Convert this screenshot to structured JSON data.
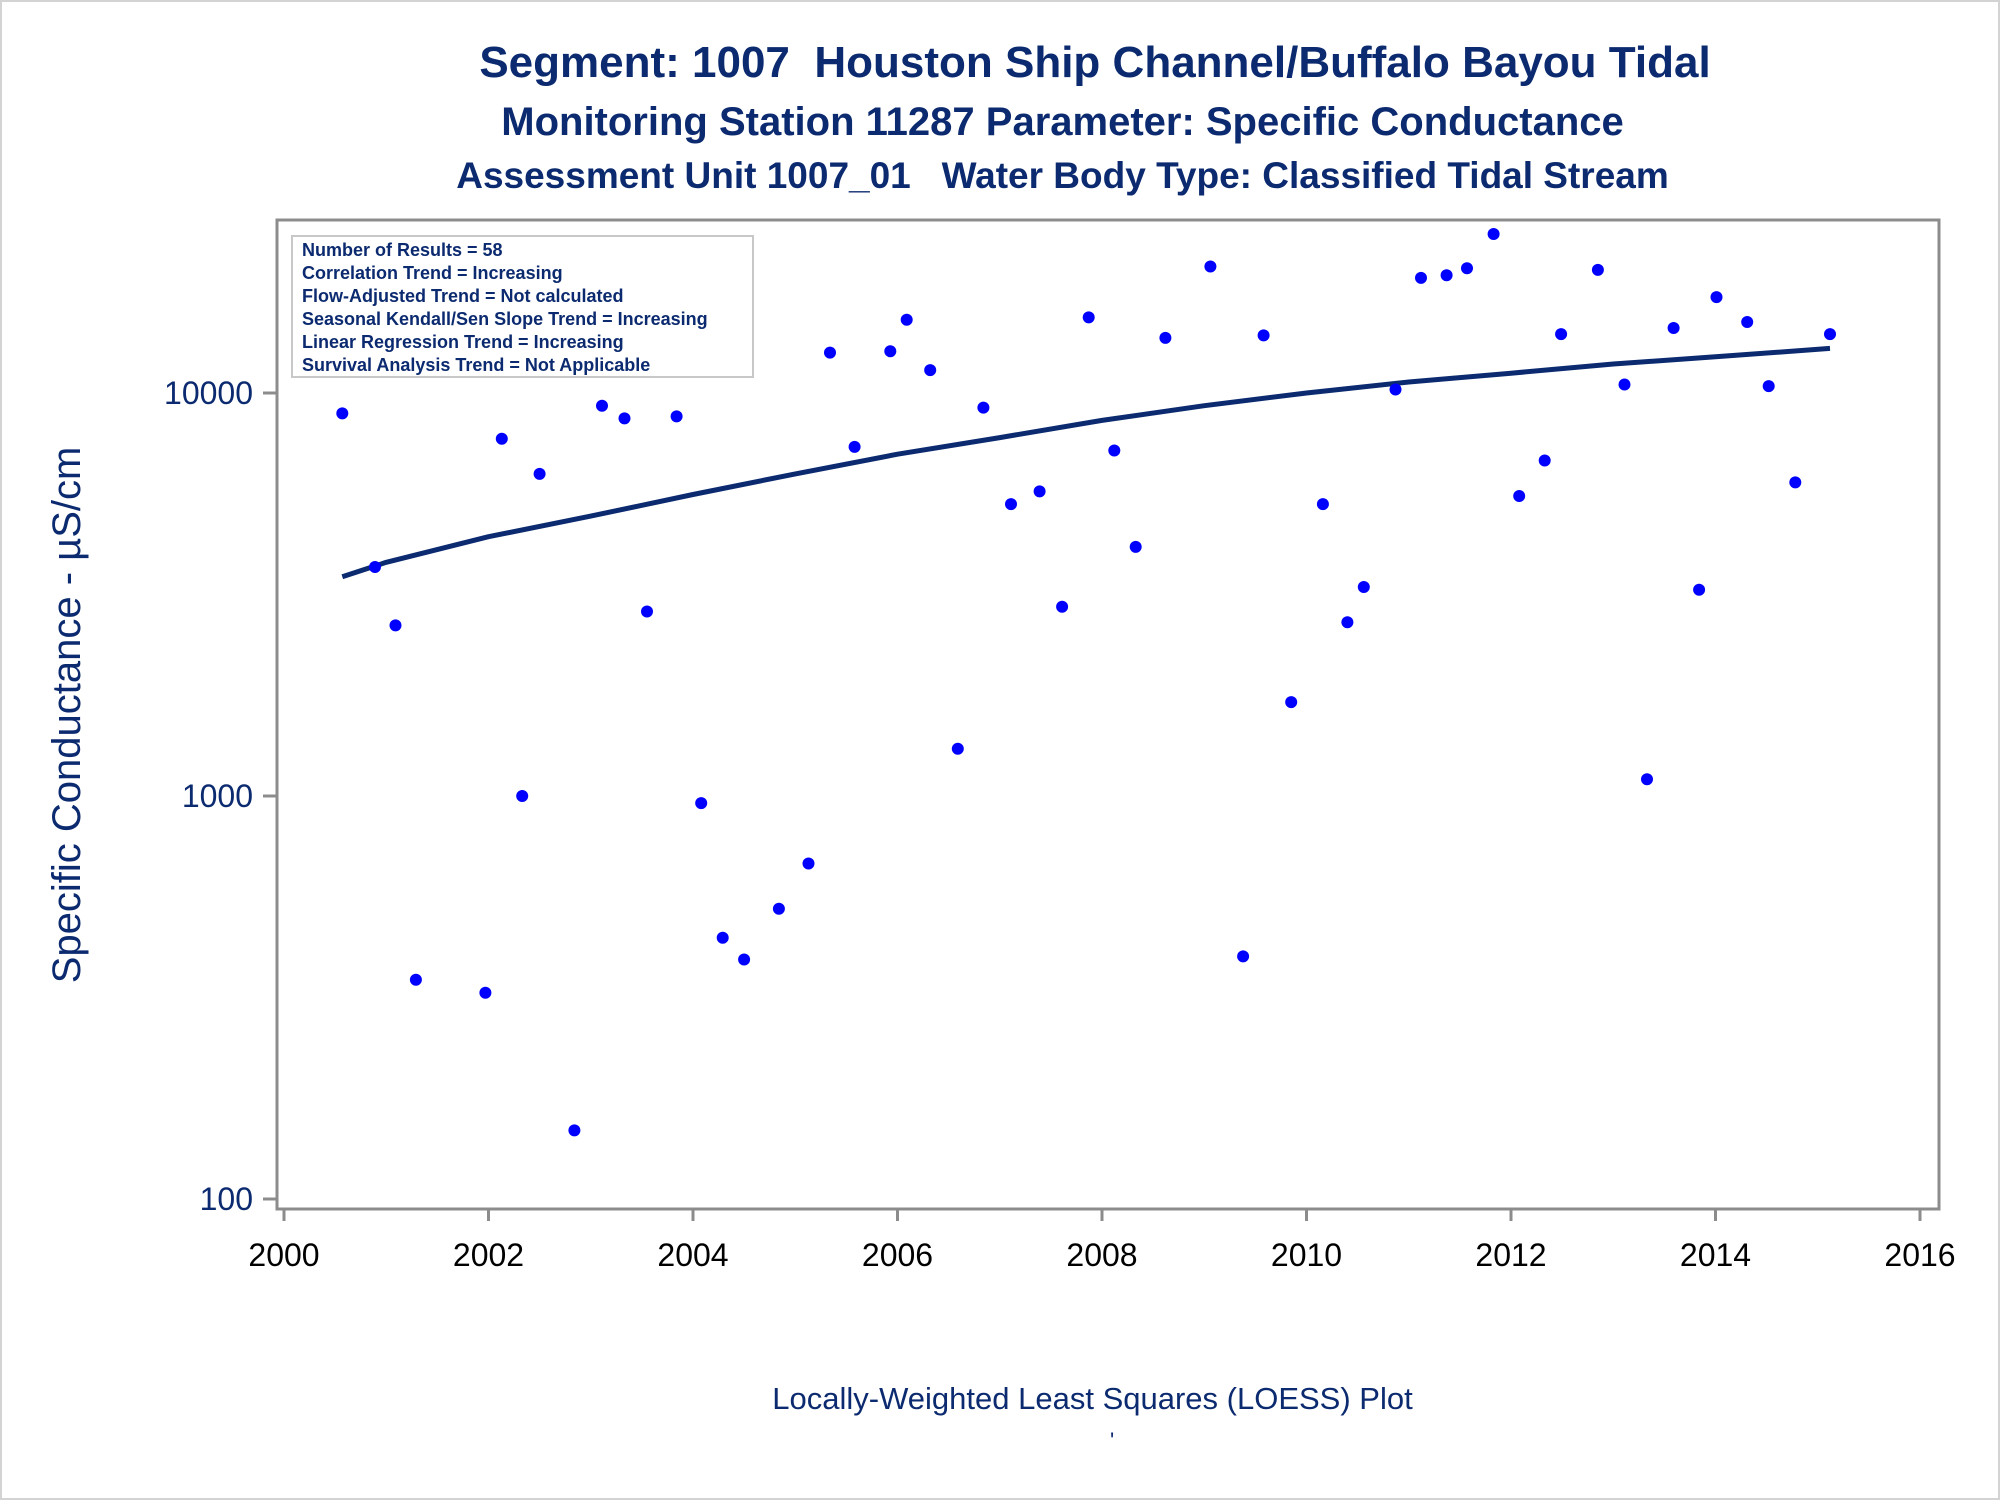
{
  "titles": {
    "line1": "Segment: 1007  Houston Ship Channel/Buffalo Bayou Tidal",
    "line2": "Monitoring Station 11287 Parameter: Specific Conductance",
    "line3": "Assessment Unit 1007_01   Water Body Type: Classified Tidal Stream"
  },
  "footnote": "Locally-Weighted Least Squares (LOESS) Plot",
  "footnote_mark": "'",
  "colors": {
    "text": "#0b2a6f",
    "points": "#0000ff",
    "trend": "#0b2a6f",
    "axis": "#8c8c8c"
  },
  "chart_data": {
    "type": "scatter",
    "ylabel": "Specific Conductance -  µS/cm",
    "xlabel": "",
    "x_ticks": [
      2000,
      2002,
      2004,
      2006,
      2008,
      2010,
      2012,
      2014,
      2016
    ],
    "y_ticks": [
      100,
      1000,
      10000
    ],
    "xlim": [
      2000,
      2016
    ],
    "ylim": [
      95,
      26000
    ],
    "y_scale": "log",
    "legend": {
      "placement": "top-left",
      "lines": [
        "Number of Results = 58",
        "Correlation Trend = Increasing",
        "Flow-Adjusted Trend = Not calculated",
        "Seasonal Kendall/Sen Slope Trend = Increasing",
        "Linear Regression Trend = Increasing",
        "Survival Analysis Trend = Not Applicable"
      ]
    },
    "series": [
      {
        "type": "scatter",
        "x": [
          2000.57,
          2000.89,
          2001.09,
          2001.29,
          2001.57,
          2001.97,
          2002.13,
          2002.33,
          2002.5,
          2002.84,
          2003.11,
          2003.33,
          2003.55,
          2003.84,
          2004.08,
          2004.29,
          2004.5,
          2004.84,
          2005.13,
          2005.34,
          2005.58,
          2005.93,
          2006.09,
          2006.32,
          2006.59,
          2006.84,
          2007.11,
          2007.39,
          2007.61,
          2007.87,
          2008.12,
          2008.33,
          2008.62,
          2009.06,
          2009.38,
          2009.58,
          2009.85,
          2010.16,
          2010.4,
          2010.56,
          2010.87,
          2011.12,
          2011.37,
          2011.57,
          2011.83,
          2012.08,
          2012.33,
          2012.49,
          2012.85,
          2013.11,
          2013.33,
          2013.59,
          2013.84,
          2014.01,
          2014.31,
          2014.52,
          2014.78,
          2015.12
        ],
        "y": [
          8900,
          3700,
          2650,
          350,
          13000,
          325,
          7700,
          1000,
          6300,
          148,
          9300,
          8650,
          2870,
          8750,
          960,
          445,
          393,
          525,
          680,
          12600,
          7350,
          12700,
          15200,
          11400,
          1310,
          9200,
          5300,
          5700,
          2950,
          15400,
          7200,
          4150,
          13700,
          20600,
          400,
          13900,
          1710,
          5300,
          2700,
          3300,
          10200,
          19300,
          19600,
          20400,
          24800,
          5550,
          6800,
          14000,
          20200,
          10500,
          1100,
          14500,
          3250,
          17300,
          15000,
          10400,
          6000,
          14000
        ]
      },
      {
        "type": "line",
        "name": "",
        "x": [
          2000.57,
          2001.0,
          2002.0,
          2003.0,
          2004.0,
          2005.0,
          2006.0,
          2007.0,
          2008.0,
          2009.0,
          2010.0,
          2011.0,
          2012.0,
          2013.0,
          2014.0,
          2015.12
        ],
        "y": [
          3500,
          3800,
          4400,
          4950,
          5600,
          6300,
          7050,
          7750,
          8550,
          9300,
          10000,
          10650,
          11200,
          11800,
          12300,
          12900
        ]
      }
    ]
  }
}
